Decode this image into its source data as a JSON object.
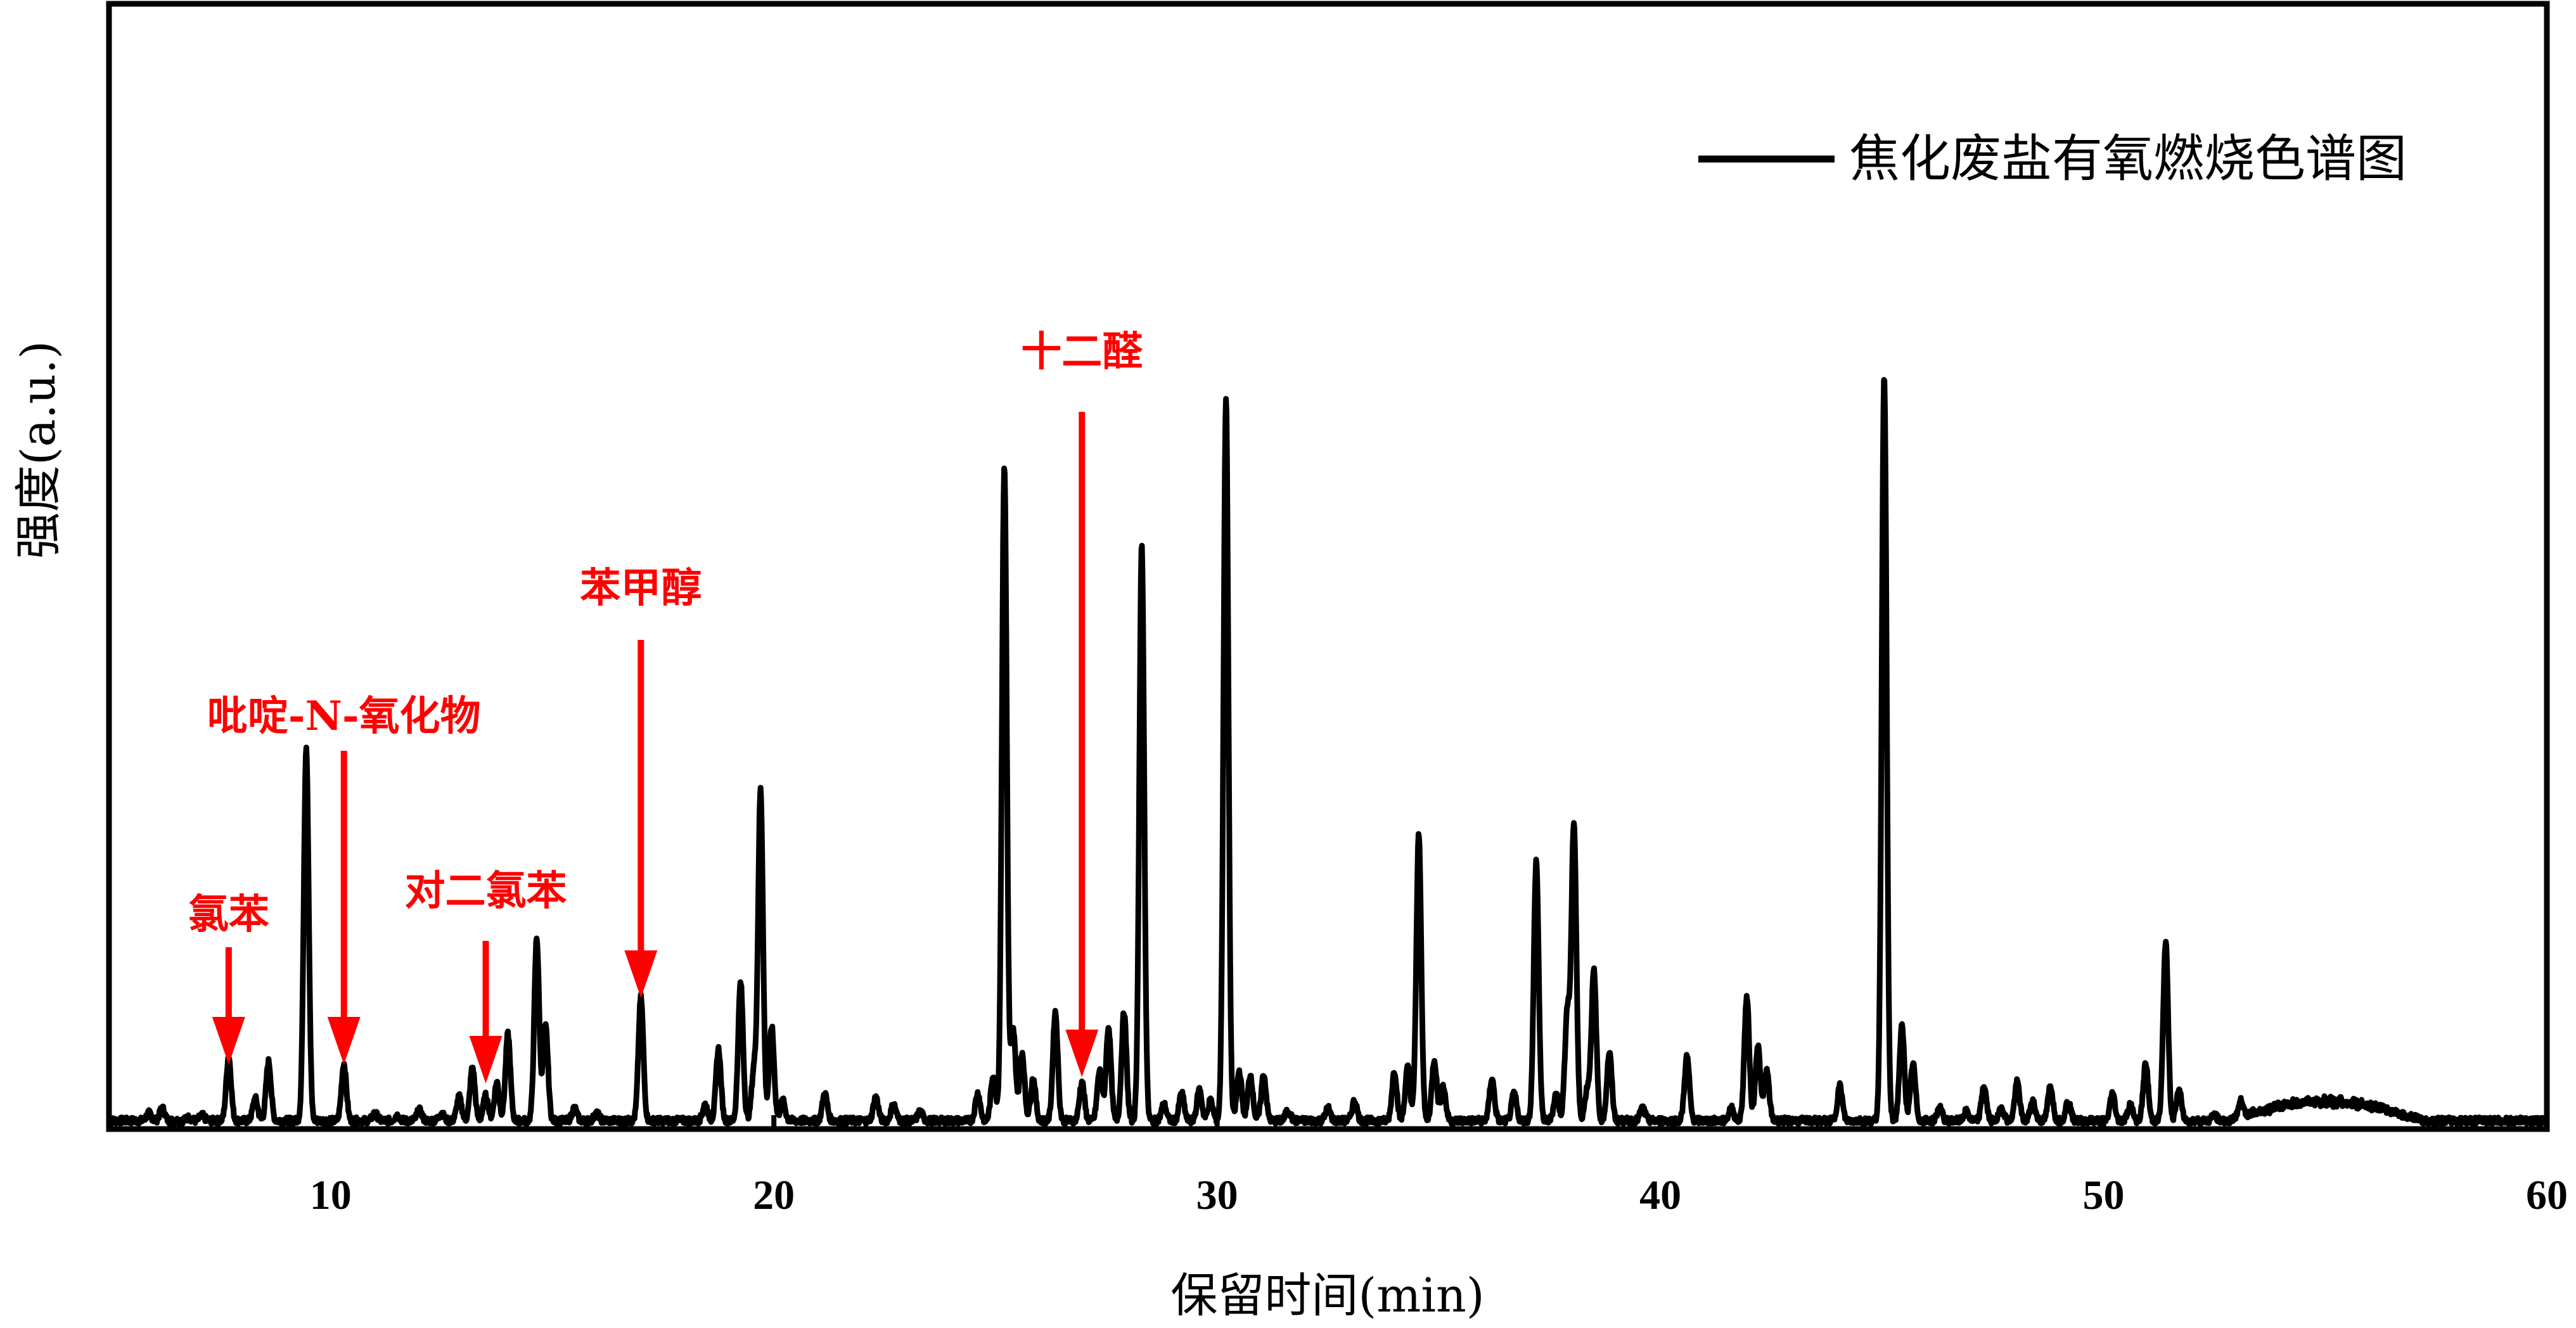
{
  "chart_data": {
    "type": "line",
    "title": "",
    "xlabel": "保留时间(min)",
    "ylabel": "强度(a.u.)",
    "xlim": [
      5,
      60
    ],
    "ylim": [
      0,
      100
    ],
    "xticks": [
      10,
      20,
      30,
      40,
      50,
      60
    ],
    "xtick_labels": [
      "10",
      "20",
      "30",
      "40",
      "50",
      "60"
    ],
    "yticks_shown": false,
    "grid": false,
    "legend_position": "top-right",
    "series": [
      {
        "name": "焦化废盐有氧燃烧色谱图",
        "color": "#000000",
        "baseline": 0.8,
        "peaks": [
          {
            "x": 5.9,
            "y": 1.8
          },
          {
            "x": 6.2,
            "y": 2.5
          },
          {
            "x": 6.8,
            "y": 1.2
          },
          {
            "x": 7.1,
            "y": 1.5
          },
          {
            "x": 7.7,
            "y": 9.5
          },
          {
            "x": 8.3,
            "y": 3.8
          },
          {
            "x": 8.6,
            "y": 8.8
          },
          {
            "x": 9.45,
            "y": 51.5
          },
          {
            "x": 10.3,
            "y": 8.5
          },
          {
            "x": 11.0,
            "y": 1.8
          },
          {
            "x": 11.5,
            "y": 1.5
          },
          {
            "x": 12.0,
            "y": 2.2
          },
          {
            "x": 12.5,
            "y": 1.8
          },
          {
            "x": 12.9,
            "y": 4.0
          },
          {
            "x": 13.2,
            "y": 8.0
          },
          {
            "x": 13.5,
            "y": 4.2
          },
          {
            "x": 13.75,
            "y": 6.0
          },
          {
            "x": 14.0,
            "y": 12.5
          },
          {
            "x": 14.65,
            "y": 25.5
          },
          {
            "x": 14.85,
            "y": 13.5
          },
          {
            "x": 15.5,
            "y": 2.5
          },
          {
            "x": 16.0,
            "y": 1.8
          },
          {
            "x": 17.0,
            "y": 17.5
          },
          {
            "x": 18.45,
            "y": 3.0
          },
          {
            "x": 18.75,
            "y": 10.5
          },
          {
            "x": 19.25,
            "y": 19.5
          },
          {
            "x": 19.55,
            "y": 7.5
          },
          {
            "x": 19.7,
            "y": 45.5
          },
          {
            "x": 19.95,
            "y": 13.5
          },
          {
            "x": 20.2,
            "y": 3.5
          },
          {
            "x": 21.15,
            "y": 4.5
          },
          {
            "x": 22.3,
            "y": 4.0
          },
          {
            "x": 22.7,
            "y": 3.0
          },
          {
            "x": 23.3,
            "y": 2.0
          },
          {
            "x": 24.6,
            "y": 4.5
          },
          {
            "x": 24.95,
            "y": 7.0
          },
          {
            "x": 25.2,
            "y": 89.5
          },
          {
            "x": 25.4,
            "y": 13.0
          },
          {
            "x": 25.6,
            "y": 10.0
          },
          {
            "x": 25.85,
            "y": 6.5
          },
          {
            "x": 26.35,
            "y": 15.5
          },
          {
            "x": 26.95,
            "y": 6.0
          },
          {
            "x": 27.35,
            "y": 7.5
          },
          {
            "x": 27.55,
            "y": 13.5
          },
          {
            "x": 27.9,
            "y": 15.5
          },
          {
            "x": 28.3,
            "y": 78.5
          },
          {
            "x": 28.8,
            "y": 3.0
          },
          {
            "x": 29.2,
            "y": 4.5
          },
          {
            "x": 29.6,
            "y": 5.0
          },
          {
            "x": 29.85,
            "y": 3.5
          },
          {
            "x": 30.2,
            "y": 98.5
          },
          {
            "x": 30.5,
            "y": 7.5
          },
          {
            "x": 30.75,
            "y": 7.0
          },
          {
            "x": 31.05,
            "y": 7.0
          },
          {
            "x": 31.6,
            "y": 2.2
          },
          {
            "x": 32.5,
            "y": 2.5
          },
          {
            "x": 33.1,
            "y": 3.5
          },
          {
            "x": 34.0,
            "y": 7.5
          },
          {
            "x": 34.3,
            "y": 8.0
          },
          {
            "x": 34.55,
            "y": 39.5
          },
          {
            "x": 34.9,
            "y": 9.0
          },
          {
            "x": 35.1,
            "y": 5.5
          },
          {
            "x": 36.2,
            "y": 6.5
          },
          {
            "x": 36.7,
            "y": 4.5
          },
          {
            "x": 37.2,
            "y": 36.0
          },
          {
            "x": 37.65,
            "y": 4.5
          },
          {
            "x": 37.9,
            "y": 15.5
          },
          {
            "x": 38.05,
            "y": 41.0
          },
          {
            "x": 38.35,
            "y": 5.0
          },
          {
            "x": 38.5,
            "y": 21.0
          },
          {
            "x": 38.85,
            "y": 10.0
          },
          {
            "x": 39.6,
            "y": 2.5
          },
          {
            "x": 40.6,
            "y": 9.5
          },
          {
            "x": 41.6,
            "y": 2.5
          },
          {
            "x": 41.95,
            "y": 17.5
          },
          {
            "x": 42.2,
            "y": 11.0
          },
          {
            "x": 42.4,
            "y": 7.5
          },
          {
            "x": 44.05,
            "y": 5.5
          },
          {
            "x": 45.05,
            "y": 102.0
          },
          {
            "x": 45.45,
            "y": 13.5
          },
          {
            "x": 45.7,
            "y": 8.5
          },
          {
            "x": 46.3,
            "y": 2.5
          },
          {
            "x": 46.9,
            "y": 2.0
          },
          {
            "x": 47.3,
            "y": 5.5
          },
          {
            "x": 47.7,
            "y": 2.5
          },
          {
            "x": 48.05,
            "y": 6.0
          },
          {
            "x": 48.4,
            "y": 3.5
          },
          {
            "x": 48.8,
            "y": 5.5
          },
          {
            "x": 49.2,
            "y": 3.5
          },
          {
            "x": 50.2,
            "y": 4.5
          },
          {
            "x": 50.6,
            "y": 3.0
          },
          {
            "x": 50.95,
            "y": 8.5
          },
          {
            "x": 51.4,
            "y": 25.0
          },
          {
            "x": 51.7,
            "y": 5.0
          },
          {
            "x": 52.5,
            "y": 1.5
          },
          {
            "x": 53.1,
            "y": 3.0
          }
        ],
        "hump": {
          "start": 52.8,
          "peak": 54.6,
          "end": 57.2,
          "height": 2.6
        }
      }
    ],
    "annotations": [
      {
        "label": "氯苯",
        "x": 7.7
      },
      {
        "label": "吡啶-N-氧化物",
        "x": 10.3
      },
      {
        "label": "对二氯苯",
        "x": 13.5
      },
      {
        "label": "苯甲醇",
        "x": 17.0
      },
      {
        "label": "十二醛",
        "x": 26.95
      }
    ],
    "annotation_color": "#ff0000"
  }
}
